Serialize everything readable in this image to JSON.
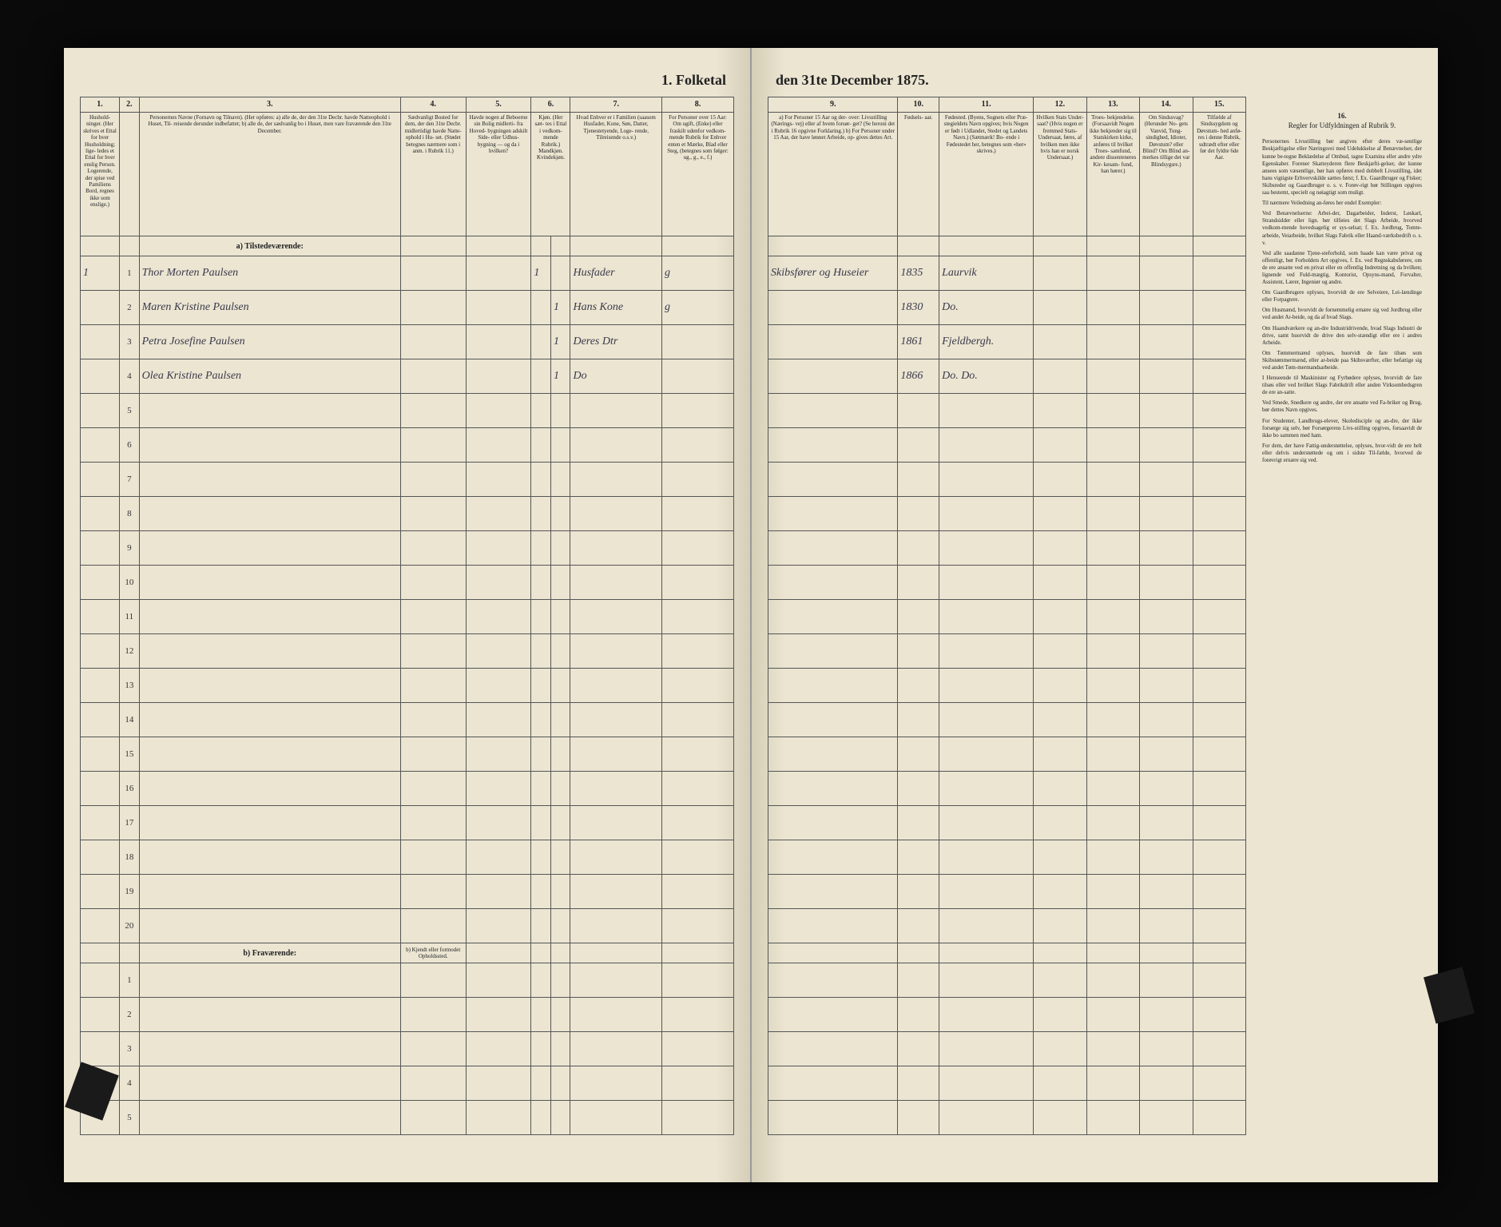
{
  "title_prefix": "1. Folketal",
  "title_suffix": "den 31te December 1875.",
  "columns_left": {
    "c1": {
      "num": "1.",
      "head": "Hushold-\nninger.\n(Her skrives et\nEttal for hver\nHusholdning; lige-\nledes et Ettal for\nhver enslig\nPerson.\nLogerende,\nder spise ved\nPamiliens\nBord, regnes ikke\nsom enslige.)"
    },
    "c2": {
      "num": "2.",
      "head": ""
    },
    "c3": {
      "num": "3.",
      "head": "Personernes Navne (Fornavn og Tilnavn).\n(Her opføres:\na) alle de, der den 31te Decbr. havde Natteophold i Huset, Til-\nreisende derunder indbefattet;\nb) alle de, der sædvanlig bo i Huset, men vare fraværende\nden 31te December."
    },
    "c4": {
      "num": "4.",
      "head": "Sædvanligt\nBosted for\ndem, der den\n31te Decbr.\nmidlertidigt\nhavde Natte-\nophold i Hu-\nset.\n(Stødet betegnes\nnærmere som i\nanm. i Rubrik 11.)"
    },
    "c5": {
      "num": "5.",
      "head": "Havde nogen\naf Beboerne\nsin Bolig\nmidlerti-\nfra Hoved-\nbygningen\nadskilt Side-\neller Udhus-\nbygning —\nog da i\nhvilken?"
    },
    "c6": {
      "num": "6.",
      "head": "Kjøn.\n(Her sæt-\ntes i\nEttal i\nvedkom-\nmende\nRubrik.)\nMandkjøn.\nKvindekjøn."
    },
    "c7": {
      "num": "7.",
      "head": "Hvad Enhver er\ni Familien\n(saasom Husfader,\nKone, Søn, Datter,\nTjenestetyende, Loge-\nrende,\nTilreisende o.s.v.)"
    },
    "c8": {
      "num": "8.",
      "head": "For Personer\nover 15 Aar:\nOm ugift,\n(Enke) eller\nfraskilt\nudenfor vedkom-\nmende Rubrik for\nEnhver enten et\nMærke, Blad\neller Steg,\n(betegnes som\nfølger:\nug., g., e., f.)"
    }
  },
  "columns_right": {
    "c9": {
      "num": "9.",
      "head": "a) For Personer 15 Aar og der-\nover: Livsstilling (Nærings-\nvej) eller af hvem forsør-\nget? (Se heroni det i Rubrik 16\nopgivne Forklaring.)\nb) For Personer under 15 Aar,\nder have lønnet Arbeide, op-\ngives dettes Art."
    },
    "c10": {
      "num": "10.",
      "head": "Fødsels-\naar."
    },
    "c11": {
      "num": "11.",
      "head": "Fødested.\n(Byens, Sognets eller Præ-\nstegieldets Navn opgives; hvis\nNogen er født i Udlandet,\nStedet og Landets\nNavn.)\n(Sætmærk! Bo-\nende i Fødestedet\nher, betegnes\nsom «her»\nskrives.)"
    },
    "c12": {
      "num": "12.",
      "head": "Hvilken\nStats Under-\nsaat?\n(Hvis nogen er\nfremmed Stats-\nUndersaat,\nføres, af hvilken\nmen ikke\nhvis han er\nnorsk\nUndersaat.)"
    },
    "c13": {
      "num": "13.",
      "head": "Troes-\nbekjendelse.\n(Forsaavidt Nogen\nikke bekjender\nsig til\nStatskirken\nkirke, anføres\ntil hvilket Troes-\nsamfund, andere\ndissenteneres Kir-\nkesam-\nfund, han\nhører.)"
    },
    "c14": {
      "num": "14.",
      "head": "Om\nSindssvag?\n(Herunder No-\ngets Vanvid,\nTung-\nsindighed, Idioter,\nDøvstum?\neller Blind?\nOm Blind an-\nmerkes tillige\ndet var\nBlindsygsre.)"
    },
    "c15": {
      "num": "15.",
      "head": "Tilfælde af\nSindssygdom og\nDøvstum-\nhed anfø-\nres i denne\nRubrik,\nudtrædt\nefter eller\nfør det\nfyldte\n6de Aar."
    }
  },
  "col16": {
    "num": "16.",
    "head": "Regler for Udfyldningen\naf\nRubrik 9."
  },
  "section_a": "a) Tilstedeværende:",
  "section_b": "b) Fraværende:",
  "section_b_note": "b) Kjendt eller\nformodet\nOpholdssted.",
  "rows": [
    {
      "n": "1",
      "hh": "1",
      "name": "Thor Morten Paulsen",
      "c4": "",
      "c5": "",
      "m": "1",
      "k": "",
      "rel": "Husfader",
      "civ": "g",
      "occ": "Skibsfører og Huseier",
      "yr": "1835",
      "bp": "Laurvik"
    },
    {
      "n": "2",
      "hh": "",
      "name": "Maren Kristine Paulsen",
      "c4": "",
      "c5": "",
      "m": "",
      "k": "1",
      "rel": "Hans Kone",
      "civ": "g",
      "occ": "",
      "yr": "1830",
      "bp": "Do."
    },
    {
      "n": "3",
      "hh": "",
      "name": "Petra Josefine Paulsen",
      "c4": "",
      "c5": "",
      "m": "",
      "k": "1",
      "rel": "Deres Dtr",
      "civ": "",
      "occ": "",
      "yr": "1861",
      "bp": "Fjeldbergh."
    },
    {
      "n": "4",
      "hh": "",
      "name": "Olea Kristine Paulsen",
      "c4": "",
      "c5": "",
      "m": "",
      "k": "1",
      "rel": "Do",
      "civ": "",
      "occ": "",
      "yr": "1866",
      "bp": "Do.   Do."
    },
    {
      "n": "5"
    },
    {
      "n": "6"
    },
    {
      "n": "7"
    },
    {
      "n": "8"
    },
    {
      "n": "9"
    },
    {
      "n": "10"
    },
    {
      "n": "11"
    },
    {
      "n": "12"
    },
    {
      "n": "13"
    },
    {
      "n": "14"
    },
    {
      "n": "15"
    },
    {
      "n": "16"
    },
    {
      "n": "17"
    },
    {
      "n": "18"
    },
    {
      "n": "19"
    },
    {
      "n": "20"
    }
  ],
  "rows_b": [
    {
      "n": "1"
    },
    {
      "n": "2"
    },
    {
      "n": "3"
    },
    {
      "n": "4"
    },
    {
      "n": "5"
    }
  ],
  "instructions": {
    "p1": "Personernes Livsstilling bør angives efter deres væ-sentlige Beskjæftigelse eller Næringsvei med Udelukkelse af Benævnelser, der kunne be-tegne Beklædelse af Ombud, tagne Examina eller andre ydre Egenskaber. Forener Skatteyderen flere Beskjæfti-gelser, der kunne ansees som væsentlige, bør han opføres med dobbelt Livsstilling, idet hans vigtigste Erhvervskilde sættes først; f. Ex. Gaardbruger og Fisker; Skibsreder og Gaardbruger o. s. v. Forøv-rigt bør Stillingen opgives saa bestemt, specielt og nøiagtigt som muligt.",
    "p2": "Til nærmere Veiledning an-føres her endel Exempler:",
    "p3": "Ved Benævnelserne: Arbei-der, Dagarbeider, Inderst, Løskarl, Strandsidder eller lign. bør tilføies det Slags Arbeide, hvorved vedkom-mende hovedsagelig er sys-selsat; f. Ex. Jordbrug, Tomte-arbeide, Veiarbeide, hvilket Slags Fabrik eller Haand-værksbedrift o. s. v.",
    "p4": "Ved alle saadanne Tjene-steforhold, som baade kan være privat og offentligt, bør Forholdets Art opgives, f. Ex. ved Regnskabsførere, om de ere ansatte ved en privat eller en offentlig Indretning og da hvilken; lignende ved Fuld-mægtig, Kontorist, Opsyns-mand, Forvalter, Assistent, Lærer, Ingeniør og andre.",
    "p5": "Om Gaardbrugere oplyses, hvorvidt de ere Selveiere, Lei-lændinge eller Forpagtere.",
    "p6": "Om Husmænd, hvorvidt de fornemmelig ernære sig ved Jordbrug eller ved andet Ar-beide, og da af hvad Slags.",
    "p7": "Om Haandværkere og an-dre Industridrivende, hvad Slags Industri de drive, samt huorvidt de drive den selv-stændigt eller ere i andres Arbeide.",
    "p8": "Om Tømmermænd oplyses, huorvidt de fare tilsøs som Skibstømmermænd, eller ar-beide paa Skibsværfter, eller befattige sig ved andet Tøm-mermandsarbeide.",
    "p9": "I Henseende til Maskinister og Fyrbødere oplyses, hvorvidt de fare tilsøs eller ved hvilket Slags Fabrikdrift eller anden Virksomhedsgren de ere an-satte.",
    "p10": "Ved Smede, Snedkere og andre, der ere ansatte ved Fa-briker og Brug, bør dettes Navn opgives.",
    "p11": "For Studenter, Landbrugs-elever, Skoledisciple og an-dre, der ikke forsørge sig selv, bør Forsørgerens Livs-stilling opgives, forsaavidt de ikke bo sammen med ham.",
    "p12": "For dem, der have Fattig-understøttelse, oplyses, hvor-vidt de ere helt eller delvis understøttede og om i sidste Til-fælde, hvorved de forøvrigt ernære sig ved."
  },
  "colors": {
    "paper": "#ebe5d2",
    "ink": "#222222",
    "handwriting": "#3a3a4a",
    "border": "#555555",
    "bg": "#0a0a0a"
  }
}
